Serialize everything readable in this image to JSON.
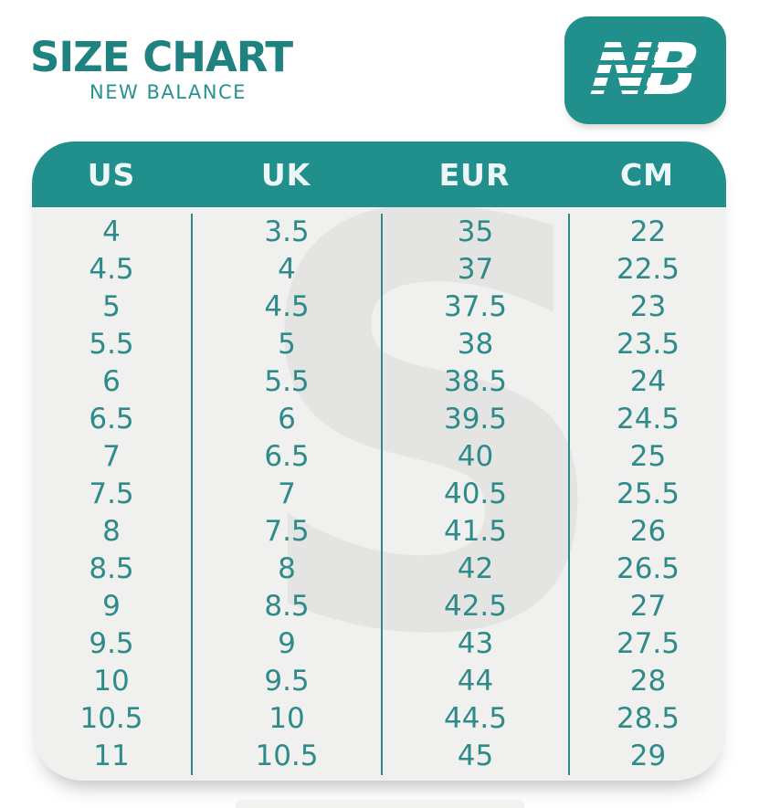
{
  "page": {
    "title": "SIZE CHART",
    "subtitle": "NEW BALANCE",
    "logo_letters": "NB",
    "watermark_letter": "S"
  },
  "chart_data": {
    "type": "table",
    "title": "SIZE CHART",
    "subtitle": "NEW BALANCE",
    "columns": [
      "US",
      "UK",
      "EUR",
      "CM"
    ],
    "series": [
      {
        "name": "US",
        "values": [
          "4",
          "4.5",
          "5",
          "5.5",
          "6",
          "6.5",
          "7",
          "7.5",
          "8",
          "8.5",
          "9",
          "9.5",
          "10",
          "10.5",
          "11"
        ]
      },
      {
        "name": "UK",
        "values": [
          "3.5",
          "4",
          "4.5",
          "5",
          "5.5",
          "6",
          "6.5",
          "7",
          "7.5",
          "8",
          "8.5",
          "9",
          "9.5",
          "10",
          "10.5"
        ]
      },
      {
        "name": "EUR",
        "values": [
          "35",
          "37",
          "37.5",
          "38",
          "38.5",
          "39.5",
          "40",
          "40.5",
          "41.5",
          "42",
          "42.5",
          "43",
          "44",
          "44.5",
          "45"
        ]
      },
      {
        "name": "CM",
        "values": [
          "22",
          "22.5",
          "23",
          "23.5",
          "24",
          "24.5",
          "25",
          "25.5",
          "26",
          "26.5",
          "27",
          "27.5",
          "28",
          "28.5",
          "29"
        ]
      }
    ],
    "layout": {
      "grid": false,
      "legend": "none",
      "column_dividers": true
    }
  },
  "colors": {
    "teal_header": "#21908c",
    "teal_title": "#1f8180",
    "teal_text": "#2f8a8a",
    "card_background": "#f0f0ef",
    "watermark_gray": "#e4e4e3",
    "header_text": "#eef7f7",
    "page_background": "#ffffff"
  }
}
